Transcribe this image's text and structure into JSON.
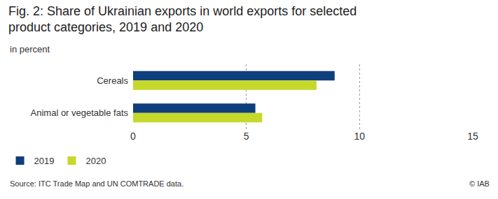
{
  "chart_data": {
    "type": "bar",
    "orientation": "horizontal",
    "title": "Fig. 2: Share of Ukrainian exports in world exports for selected product categories, 2019 and 2020",
    "subtitle": "in percent",
    "categories": [
      "Cereals",
      "Animal or vegetable fats"
    ],
    "series": [
      {
        "name": "2019",
        "color": "#0f3e7c",
        "values": [
          8.9,
          5.4
        ]
      },
      {
        "name": "2020",
        "color": "#c6d82a",
        "values": [
          8.1,
          5.7
        ]
      }
    ],
    "xlim": [
      0,
      15
    ],
    "xticks": [
      0,
      5,
      10,
      15
    ],
    "grid": true,
    "legend": "bottom left",
    "annotations": [
      "Source: ITC Trade Map and UN COMTRADE data.",
      "© IAB"
    ]
  }
}
